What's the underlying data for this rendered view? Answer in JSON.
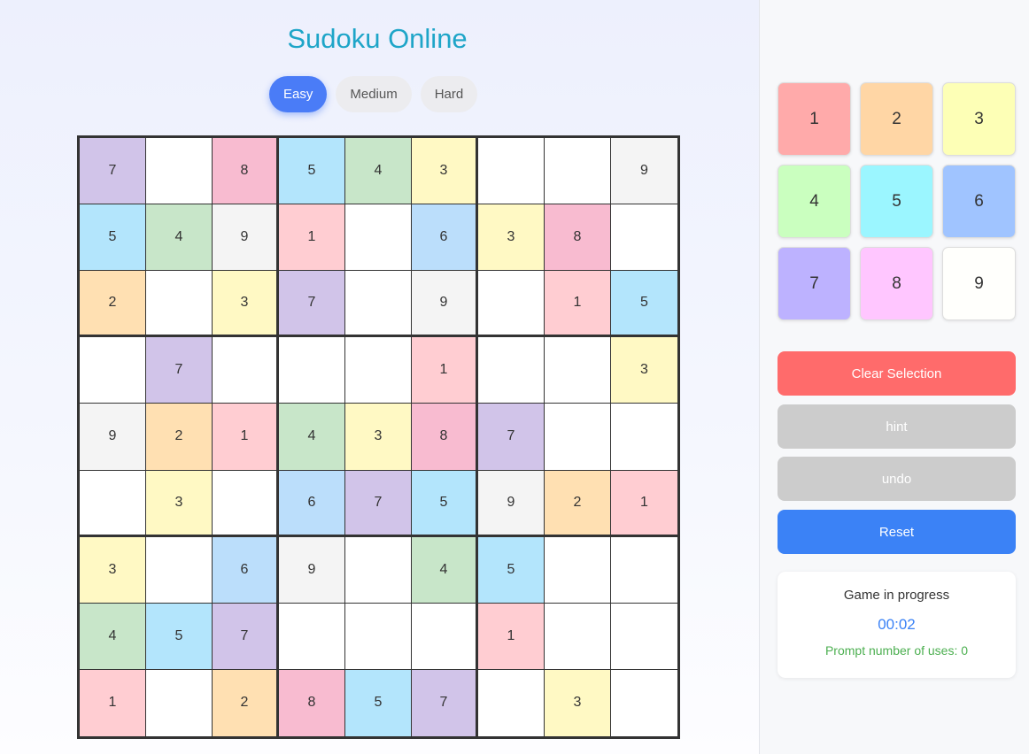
{
  "title": "Sudoku Online",
  "difficulty": {
    "options": [
      "Easy",
      "Medium",
      "Hard"
    ],
    "selected": "Easy"
  },
  "grid": [
    [
      7,
      null,
      8,
      5,
      4,
      3,
      null,
      null,
      9
    ],
    [
      5,
      4,
      9,
      1,
      null,
      6,
      3,
      8,
      null
    ],
    [
      2,
      null,
      3,
      7,
      null,
      9,
      null,
      1,
      5
    ],
    [
      null,
      7,
      null,
      null,
      null,
      1,
      null,
      null,
      3
    ],
    [
      9,
      2,
      1,
      4,
      3,
      8,
      7,
      null,
      null
    ],
    [
      null,
      3,
      null,
      6,
      7,
      5,
      9,
      2,
      1
    ],
    [
      3,
      null,
      6,
      9,
      null,
      4,
      5,
      null,
      null
    ],
    [
      4,
      5,
      7,
      null,
      null,
      null,
      1,
      null,
      null
    ],
    [
      1,
      null,
      2,
      8,
      5,
      7,
      null,
      3,
      null
    ]
  ],
  "cell_colors": {
    "1": "#ffcdd2",
    "2": "#ffe0b2",
    "3": "#fff9c4",
    "4": "#c8e6c9",
    "5": "#b3e5fc",
    "6": "#bbdefb",
    "7": "#d1c4e9",
    "8": "#f8bbd0",
    "9": "#f4f4f4"
  },
  "keypad": [
    {
      "label": "1",
      "color": "#ffaaaa"
    },
    {
      "label": "2",
      "color": "#ffd6a5"
    },
    {
      "label": "3",
      "color": "#fdffb6"
    },
    {
      "label": "4",
      "color": "#caffbf"
    },
    {
      "label": "5",
      "color": "#9bf6ff"
    },
    {
      "label": "6",
      "color": "#a0c4ff"
    },
    {
      "label": "7",
      "color": "#bdb2ff"
    },
    {
      "label": "8",
      "color": "#ffc6ff"
    },
    {
      "label": "9",
      "color": "#fffffc"
    }
  ],
  "actions": {
    "clear": "Clear Selection",
    "hint": "hint",
    "undo": "undo",
    "reset": "Reset"
  },
  "action_colors": {
    "clear": "#ff6b6b",
    "hint": "#cccccc",
    "undo": "#cccccc",
    "reset": "#3b82f6"
  },
  "status": {
    "text": "Game in progress",
    "timer": "00:02",
    "prompt": "Prompt number of uses: 0"
  }
}
